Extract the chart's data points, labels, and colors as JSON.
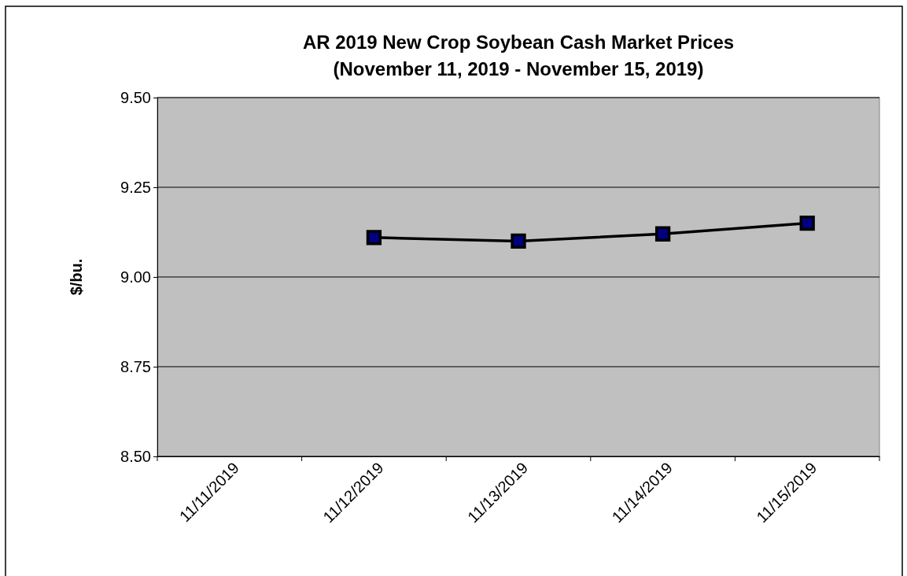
{
  "chart_data": {
    "type": "line",
    "title": "AR 2019 New Crop Soybean Cash Market Prices",
    "subtitle": "(November 11, 2019 - November 15, 2019)",
    "ylabel": "$/bu.",
    "categories": [
      "11/11/2019",
      "11/12/2019",
      "11/13/2019",
      "11/14/2019",
      "11/15/2019"
    ],
    "series": [
      {
        "color": "#000000",
        "values": [
          null,
          9.11,
          9.1,
          9.12,
          9.15
        ]
      }
    ],
    "ylim": [
      8.5,
      9.5
    ],
    "yticks": [
      {
        "value": 8.5,
        "label": "8.50"
      },
      {
        "value": 8.75,
        "label": "8.75"
      },
      {
        "value": 9,
        "label": "9.00"
      },
      {
        "value": 9.25,
        "label": "9.25"
      },
      {
        "value": 9.5,
        "label": "9.50"
      }
    ],
    "grid": "y",
    "marker": "square",
    "line_style": "solid"
  }
}
